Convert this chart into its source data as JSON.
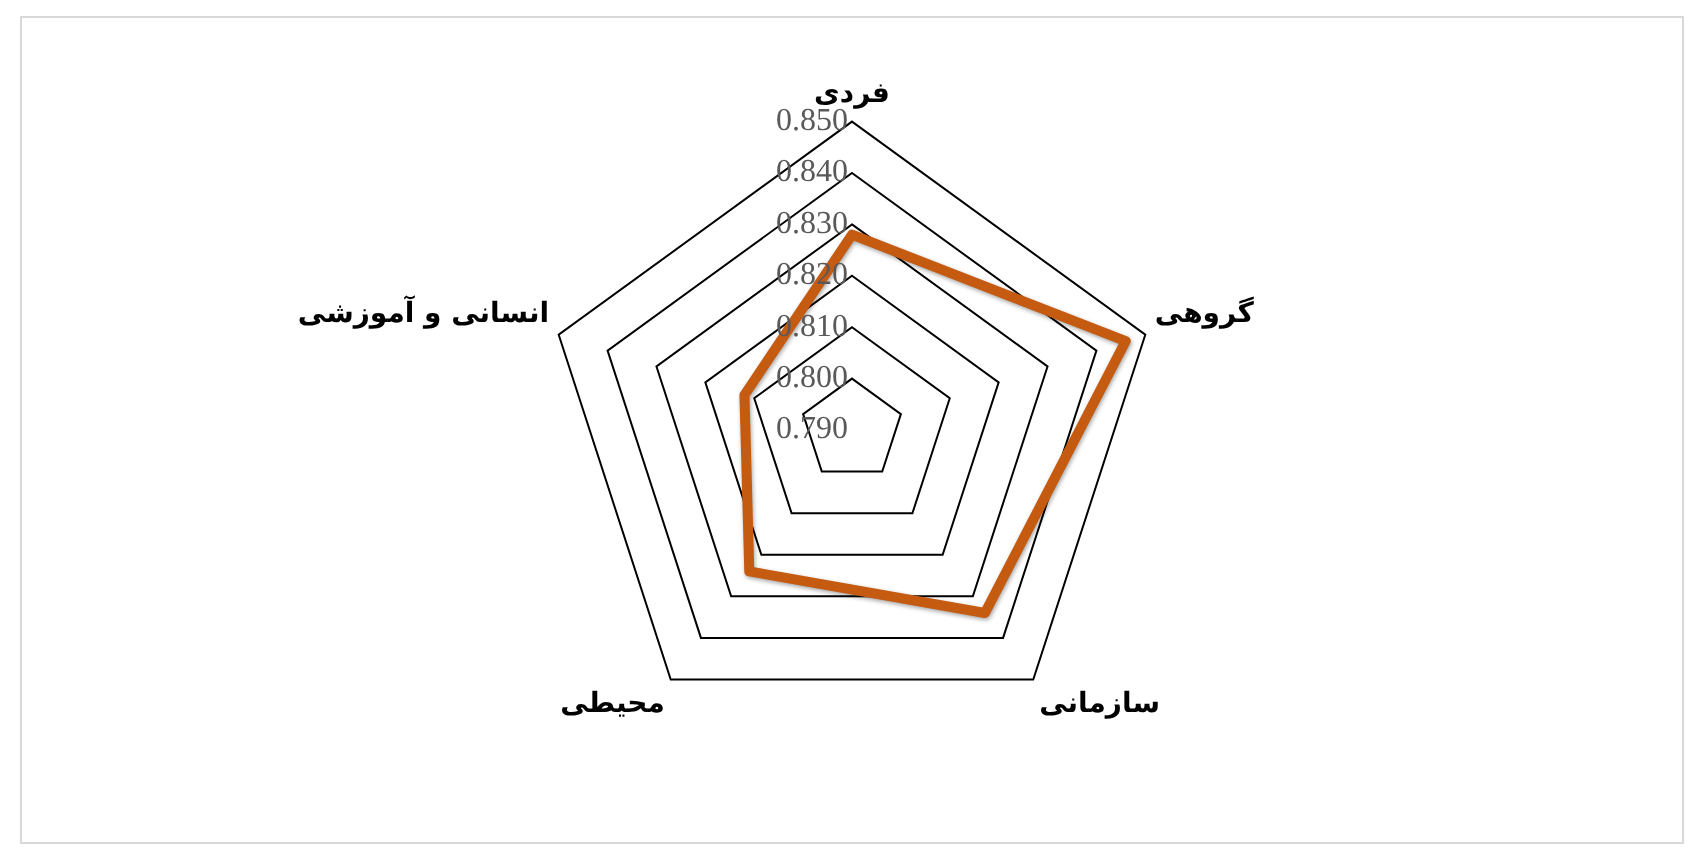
{
  "chart_data": {
    "type": "radar",
    "categories": [
      "فردی",
      "گروهی",
      "سازمانی",
      "محیطی",
      "انسانی و آموزشی"
    ],
    "series": [
      {
        "color": "#c55a11",
        "values": [
          0.828,
          0.846,
          0.834,
          0.824,
          0.812
        ]
      }
    ],
    "ylim": [
      0.79,
      0.85
    ],
    "yticks": [
      {
        "value": 0.79,
        "label": "0.790"
      },
      {
        "value": 0.8,
        "label": "0.800"
      },
      {
        "value": 0.81,
        "label": "0.810"
      },
      {
        "value": 0.82,
        "label": "0.820"
      },
      {
        "value": 0.83,
        "label": "0.830"
      },
      {
        "value": 0.84,
        "label": "0.840"
      },
      {
        "value": 0.85,
        "label": "0.850"
      }
    ],
    "grid": true,
    "legend": false,
    "marker": "none"
  }
}
